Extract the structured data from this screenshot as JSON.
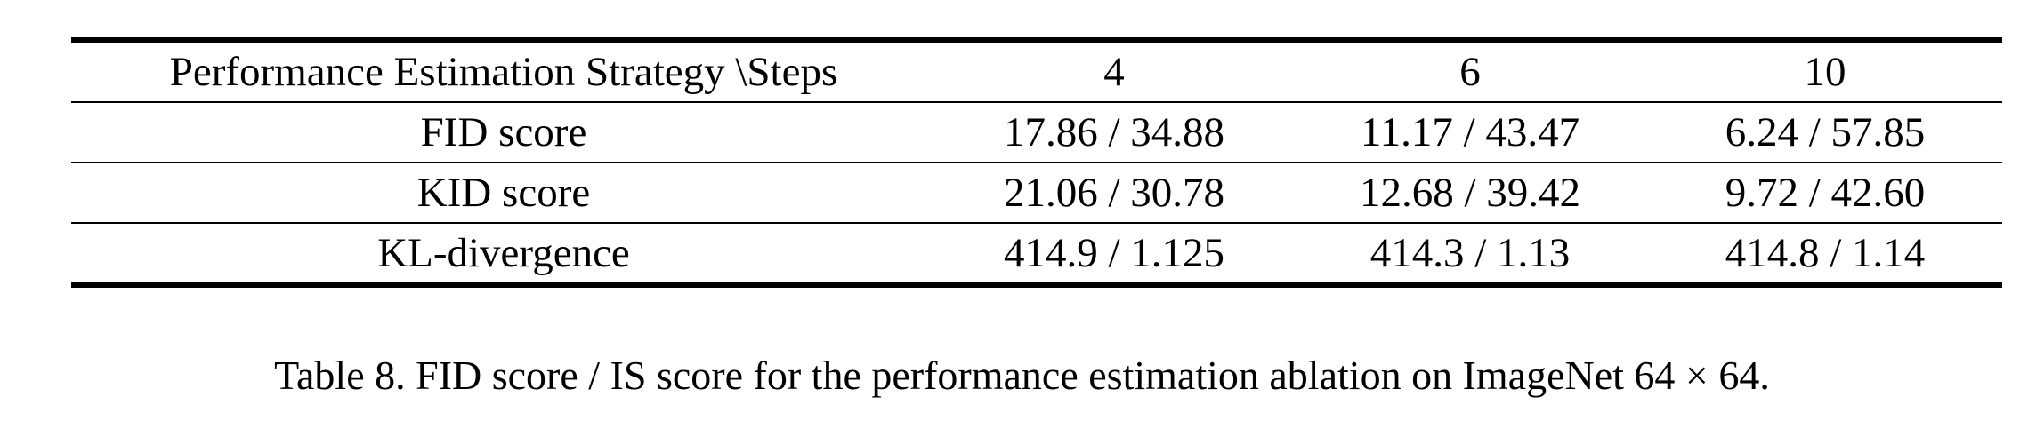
{
  "table": {
    "header": [
      "Performance Estimation Strategy \\Steps",
      "4",
      "6",
      "10"
    ],
    "rows": [
      [
        "FID score",
        "17.86 / 34.88",
        "11.17 / 43.47",
        "6.24 / 57.85"
      ],
      [
        "KID score",
        "21.06 / 30.78",
        "12.68 / 39.42",
        "9.72 / 42.60"
      ],
      [
        "KL-divergence",
        "414.9 / 1.125",
        "414.3 / 1.13",
        "414.8 / 1.14"
      ]
    ]
  },
  "caption": "Table 8. FID score / IS score for the performance estimation ablation on ImageNet 64 × 64."
}
